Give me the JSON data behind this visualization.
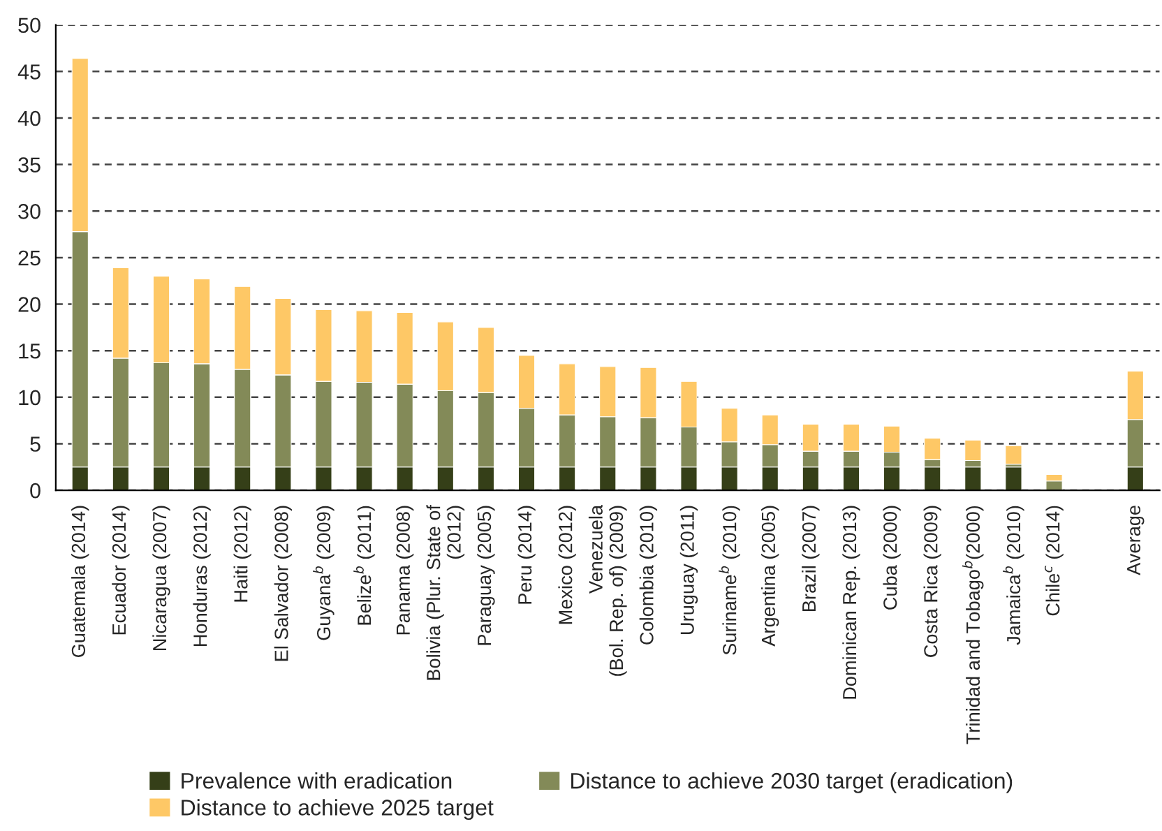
{
  "chart_data": {
    "type": "bar",
    "stacked": true,
    "categories": [
      "Guatemala (2014)",
      "Ecuador (2014)",
      "Nicaragua (2007)",
      "Honduras (2012)",
      "Haiti (2012)",
      "El Salvador (2008)",
      "Guyana$^{b}$ (2009)",
      "Belize$^{b}$ (2011)",
      "Panama (2008)",
      "Bolivia (Plur. State of\n(2012)",
      "Paraguay (2005)",
      "Peru (2014)",
      "Mexico (2012)",
      "Venezuela\n(Bol. Rep. of) (2009)",
      "Colombia (2010)",
      "Uruguay (2011)",
      "Suriname$^{b}$ (2010)",
      "Argentina (2005)",
      "Brazil (2007)",
      "Dominican Rep. (2013)",
      "Cuba (2000)",
      "Costa Rica (2009)",
      "Trinidad and Tobago$^{b}$(2000)",
      "Jamaica$^{b}$ (2010)",
      "Chile$^{c}$ (2014)",
      null,
      "Average"
    ],
    "series": [
      {
        "name": "Prevalence with eradication",
        "color": "#353f18",
        "values": [
          2.5,
          2.5,
          2.5,
          2.5,
          2.5,
          2.5,
          2.5,
          2.5,
          2.5,
          2.5,
          2.5,
          2.5,
          2.5,
          2.5,
          2.5,
          2.5,
          2.5,
          2.5,
          2.5,
          2.5,
          2.5,
          2.5,
          2.5,
          2.5,
          0,
          null,
          2.5
        ]
      },
      {
        "name": "Distance to achieve 2030 target (eradication)",
        "color": "#838a58",
        "values": [
          25.3,
          11.7,
          11.2,
          11.1,
          10.5,
          9.9,
          9.2,
          9.1,
          8.9,
          8.2,
          8.0,
          6.3,
          5.6,
          5.4,
          5.3,
          4.3,
          2.7,
          2.4,
          1.7,
          1.7,
          1.6,
          0.8,
          0.7,
          0.3,
          1.0,
          null,
          5.1
        ]
      },
      {
        "name": "Distance to achieve 2025 target",
        "color": "#fec866",
        "values": [
          18.6,
          9.7,
          9.3,
          9.1,
          8.9,
          8.2,
          7.7,
          7.7,
          7.7,
          7.4,
          7.0,
          5.7,
          5.5,
          5.4,
          5.4,
          4.9,
          3.6,
          3.2,
          2.9,
          2.9,
          2.8,
          2.3,
          2.2,
          2.0,
          0.7,
          null,
          5.2
        ]
      }
    ],
    "ylim": [
      0,
      50
    ],
    "yticks": [
      0,
      5,
      10,
      15,
      20,
      25,
      30,
      35,
      40,
      45,
      50
    ],
    "grid": "y",
    "line_style": "dashed",
    "legend": "bottom"
  }
}
